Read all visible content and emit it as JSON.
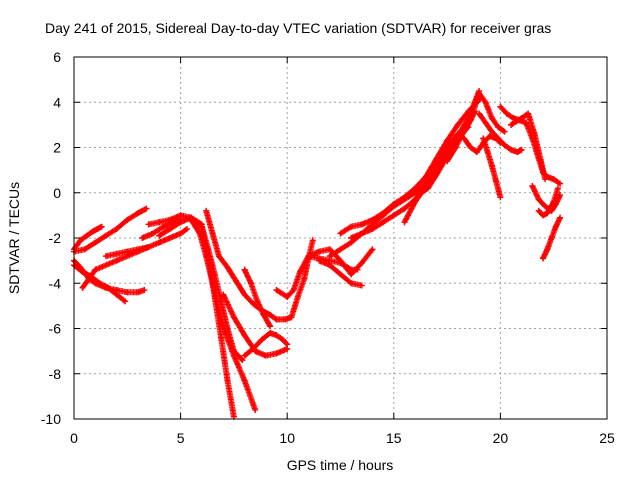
{
  "chart_data": {
    "type": "scatter",
    "title": "Day 241 of 2015, Sidereal Day-to-day VTEC variation (SDTVAR) for receiver gras",
    "xlabel": "GPS time / hours",
    "ylabel": "SDTVAR / TECUs",
    "xlim": [
      0,
      25
    ],
    "ylim": [
      -10,
      6
    ],
    "xticks": [
      "0",
      "5",
      "10",
      "15",
      "20",
      "25"
    ],
    "yticks": [
      "-10",
      "-8",
      "-6",
      "-4",
      "-2",
      "0",
      "2",
      "4",
      "6"
    ],
    "grid": true,
    "legend": "none",
    "marker": "+",
    "color": "#ff0000",
    "series": [
      {
        "x": [
          0.0,
          0.3,
          0.7,
          1.0,
          1.5,
          2.0,
          2.5,
          3.0,
          3.3
        ],
        "y": [
          -3.0,
          -3.3,
          -3.8,
          -4.0,
          -4.2,
          -4.3,
          -4.4,
          -4.4,
          -4.3
        ]
      },
      {
        "x": [
          0.0,
          0.4,
          0.8,
          1.2,
          1.6,
          2.0,
          2.4
        ],
        "y": [
          -3.2,
          -3.5,
          -3.7,
          -4.0,
          -4.2,
          -4.5,
          -4.8
        ]
      },
      {
        "x": [
          0.0,
          0.5,
          1.0,
          1.5,
          2.0,
          2.5,
          3.0,
          3.4
        ],
        "y": [
          -2.6,
          -2.5,
          -2.2,
          -1.9,
          -1.6,
          -1.2,
          -0.9,
          -0.7
        ]
      },
      {
        "x": [
          0.0,
          0.3,
          0.6,
          0.9,
          1.1,
          1.3
        ],
        "y": [
          -2.5,
          -2.1,
          -1.9,
          -1.7,
          -1.6,
          -1.5
        ]
      },
      {
        "x": [
          0.4,
          1.0,
          2.0,
          3.0,
          4.0,
          4.5,
          5.0,
          5.3
        ],
        "y": [
          -4.2,
          -3.4,
          -3.0,
          -2.6,
          -2.2,
          -2.0,
          -1.8,
          -1.6
        ]
      },
      {
        "x": [
          1.5,
          2.0,
          2.5,
          3.0,
          3.5
        ],
        "y": [
          -2.8,
          -2.7,
          -2.6,
          -2.5,
          -2.4
        ]
      },
      {
        "x": [
          3.2,
          3.7,
          4.2,
          4.7,
          5.0
        ],
        "y": [
          -2.0,
          -1.8,
          -1.5,
          -1.3,
          -1.2
        ]
      },
      {
        "x": [
          3.5,
          4.0,
          4.5,
          5.0,
          5.5,
          6.0
        ],
        "y": [
          -1.4,
          -1.3,
          -1.2,
          -1.0,
          -1.1,
          -1.4
        ]
      },
      {
        "x": [
          4.0,
          4.5,
          5.0,
          5.5,
          6.0,
          6.3,
          6.6,
          6.9,
          7.2,
          7.5
        ],
        "y": [
          -1.9,
          -1.6,
          -1.3,
          -1.1,
          -1.5,
          -2.8,
          -4.6,
          -6.4,
          -8.3,
          -9.9
        ]
      },
      {
        "x": [
          5.5,
          5.9,
          6.2,
          6.5,
          6.8,
          7.1,
          7.5,
          8.0,
          8.5
        ],
        "y": [
          -1.2,
          -1.8,
          -2.8,
          -4.0,
          -5.2,
          -6.2,
          -7.2,
          -8.3,
          -9.6
        ]
      },
      {
        "x": [
          6.0,
          6.3,
          6.6,
          6.9,
          7.2,
          7.5,
          7.9
        ],
        "y": [
          -1.5,
          -2.5,
          -3.6,
          -4.8,
          -6.0,
          -7.0,
          -7.4
        ]
      },
      {
        "x": [
          6.2,
          6.5,
          6.8,
          7.2,
          7.6,
          8.0,
          8.4,
          8.8,
          9.2,
          9.5,
          9.9,
          10.2
        ],
        "y": [
          -0.8,
          -1.8,
          -2.8,
          -3.3,
          -3.9,
          -4.5,
          -4.9,
          -5.2,
          -5.4,
          -5.6,
          -5.6,
          -5.5
        ]
      },
      {
        "x": [
          7.0,
          7.5,
          8.0,
          8.5,
          9.0,
          9.5,
          10.0
        ],
        "y": [
          -4.5,
          -5.5,
          -6.3,
          -7.0,
          -7.2,
          -7.1,
          -6.9
        ]
      },
      {
        "x": [
          8.0,
          8.4,
          8.8,
          9.2,
          9.5,
          9.8,
          10.0
        ],
        "y": [
          -7.2,
          -6.9,
          -6.5,
          -6.2,
          -6.3,
          -6.5,
          -6.7
        ]
      },
      {
        "x": [
          8.0,
          8.3,
          8.6,
          8.9,
          9.2
        ],
        "y": [
          -3.4,
          -4.0,
          -4.8,
          -5.4,
          -5.9
        ]
      },
      {
        "x": [
          9.5,
          10.0,
          10.3,
          10.6,
          11.0,
          11.5,
          12.0,
          12.5,
          13.0,
          13.3
        ],
        "y": [
          -4.3,
          -4.6,
          -4.3,
          -3.5,
          -2.8,
          -2.9,
          -3.0,
          -3.1,
          -3.4,
          -3.4
        ]
      },
      {
        "x": [
          10.2,
          10.5,
          10.8,
          11.0,
          11.2
        ],
        "y": [
          -5.5,
          -4.6,
          -3.8,
          -2.9,
          -2.1
        ]
      },
      {
        "x": [
          11.0,
          11.5,
          12.0,
          12.5,
          13.0,
          13.5,
          14.0
        ],
        "y": [
          -2.8,
          -2.6,
          -2.5,
          -3.0,
          -3.6,
          -3.1,
          -2.5
        ]
      },
      {
        "x": [
          11.5,
          12.0,
          12.5,
          13.0,
          13.5
        ],
        "y": [
          -3.0,
          -3.2,
          -3.6,
          -4.0,
          -4.1
        ]
      },
      {
        "x": [
          12.0,
          12.5,
          13.0,
          13.5,
          14.0,
          14.5,
          15.0,
          15.5,
          16.0,
          16.5,
          17.0,
          17.5,
          18.0,
          18.5
        ],
        "y": [
          -2.8,
          -2.5,
          -2.2,
          -1.8,
          -1.4,
          -1.0,
          -0.6,
          -0.3,
          0.0,
          0.4,
          1.2,
          2.0,
          2.6,
          2.9
        ]
      },
      {
        "x": [
          12.5,
          13.0,
          13.5,
          14.0,
          14.5,
          15.0,
          15.5,
          16.0,
          16.5,
          17.0,
          17.5,
          18.0,
          18.5,
          18.8,
          19.0
        ],
        "y": [
          -1.8,
          -1.5,
          -1.4,
          -1.2,
          -0.9,
          -0.5,
          -0.2,
          0.2,
          0.7,
          1.5,
          2.3,
          3.0,
          3.6,
          3.9,
          4.1
        ]
      },
      {
        "x": [
          13.0,
          13.5,
          14.0,
          14.5,
          15.0,
          15.5,
          16.0,
          16.5,
          17.0,
          17.5,
          18.0,
          18.5,
          18.8,
          19.0
        ],
        "y": [
          -2.0,
          -1.8,
          -1.6,
          -1.3,
          -1.0,
          -0.7,
          -0.3,
          0.3,
          1.0,
          1.8,
          2.5,
          3.3,
          4.0,
          4.5
        ]
      },
      {
        "x": [
          15.5,
          16.0,
          16.3,
          16.6,
          17.0,
          17.5,
          18.0,
          18.3,
          18.6,
          18.8
        ],
        "y": [
          -1.3,
          -0.4,
          0.0,
          0.2,
          0.8,
          1.6,
          2.3,
          2.7,
          3.2,
          3.6
        ]
      },
      {
        "x": [
          17.5,
          17.9,
          18.3,
          18.7,
          19.0,
          19.3,
          19.6,
          19.9,
          20.2
        ],
        "y": [
          1.4,
          2.0,
          2.8,
          3.5,
          4.4,
          4.0,
          3.3,
          2.9,
          2.7
        ]
      },
      {
        "x": [
          18.3,
          18.6,
          18.9,
          19.2,
          19.5,
          19.8,
          20.0
        ],
        "y": [
          2.4,
          2.0,
          1.8,
          2.2,
          2.5,
          2.4,
          2.2
        ]
      },
      {
        "x": [
          19.0,
          19.3,
          19.6,
          19.9,
          20.2,
          20.5,
          20.8,
          21.0
        ],
        "y": [
          3.5,
          3.1,
          2.7,
          2.4,
          2.1,
          1.9,
          1.8,
          1.9
        ]
      },
      {
        "x": [
          19.2,
          19.4,
          19.6,
          19.8,
          20.0
        ],
        "y": [
          2.4,
          1.8,
          1.2,
          0.5,
          -0.2
        ]
      },
      {
        "x": [
          20.0,
          20.3,
          20.6,
          20.9,
          21.2,
          21.5,
          21.8,
          22.0,
          22.2,
          22.5,
          22.8
        ],
        "y": [
          3.8,
          3.5,
          3.3,
          3.2,
          3.1,
          2.4,
          1.5,
          0.9,
          0.7,
          0.6,
          0.4
        ]
      },
      {
        "x": [
          20.5,
          21.0,
          21.3,
          21.6,
          21.9,
          22.1
        ],
        "y": [
          3.0,
          3.3,
          3.5,
          2.6,
          1.4,
          0.6
        ]
      },
      {
        "x": [
          21.5,
          21.8,
          22.1,
          22.4,
          22.6,
          22.8
        ],
        "y": [
          0.3,
          -0.3,
          -0.6,
          -0.8,
          -0.5,
          -0.1
        ]
      },
      {
        "x": [
          21.8,
          22.0,
          22.2,
          22.5,
          22.7
        ],
        "y": [
          -0.8,
          -1.0,
          -0.9,
          -0.4,
          0.2
        ]
      },
      {
        "x": [
          22.0,
          22.2,
          22.4,
          22.6,
          22.8
        ],
        "y": [
          -2.9,
          -2.5,
          -2.0,
          -1.5,
          -1.1
        ]
      }
    ]
  }
}
